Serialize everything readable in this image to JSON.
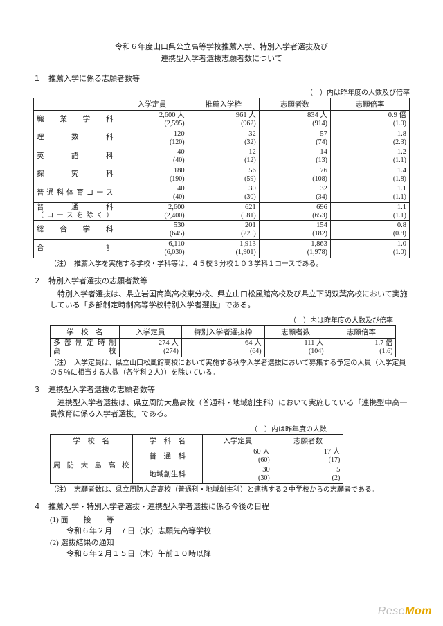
{
  "title_l1": "令和６年度山口県公立高等学校推薦入学、特別入学者選抜及び",
  "title_l2": "連携型入学者選抜志願者数について",
  "s1": {
    "heading": "１　推薦入学に係る志願者数等",
    "caption": "（　）内は昨年度の人数及び倍率",
    "headers": [
      "",
      "入学定員",
      "推薦入学枠",
      "志願者数",
      "志願倍率"
    ],
    "rows": [
      {
        "label": "職　業　学　科",
        "c1": "2,600 人",
        "c1s": "(2,595)",
        "c2": "961 人",
        "c2s": "(962)",
        "c3": "834 人",
        "c3s": "(914)",
        "c4": "0.9 倍",
        "c4s": "(1.0)"
      },
      {
        "label": "理　　数　　科",
        "c1": "120",
        "c1s": "(120)",
        "c2": "32",
        "c2s": "(32)",
        "c3": "57",
        "c3s": "(74)",
        "c4": "1.8",
        "c4s": "(2.3)"
      },
      {
        "label": "英　　語　　科",
        "c1": "40",
        "c1s": "(40)",
        "c2": "12",
        "c2s": "(12)",
        "c3": "14",
        "c3s": "(13)",
        "c4": "1.2",
        "c4s": "(1.1)"
      },
      {
        "label": "探　　究　　科",
        "c1": "180",
        "c1s": "(190)",
        "c2": "56",
        "c2s": "(59)",
        "c3": "76",
        "c3s": "(108)",
        "c4": "1.4",
        "c4s": "(1.8)"
      },
      {
        "label": "普通科体育コース",
        "c1": "40",
        "c1s": "(40)",
        "c2": "30",
        "c2s": "(30)",
        "c3": "32",
        "c3s": "(34)",
        "c4": "1.1",
        "c4s": "(1.1)"
      },
      {
        "label": "普　　通　　科",
        "label2": "（コースを除く）",
        "c1": "2,600",
        "c1s": "(2,400)",
        "c2": "621",
        "c2s": "(581)",
        "c3": "696",
        "c3s": "(653)",
        "c4": "1.1",
        "c4s": "(1.1)"
      },
      {
        "label": "総　合　学　科",
        "c1": "530",
        "c1s": "(645)",
        "c2": "201",
        "c2s": "(225)",
        "c3": "154",
        "c3s": "(182)",
        "c4": "0.8",
        "c4s": "(0.8)"
      },
      {
        "label": "合　　　　　計",
        "c1": "6,110",
        "c1s": "(6,030)",
        "c2": "1,913",
        "c2s": "(1,901)",
        "c3": "1,863",
        "c3s": "(1,978)",
        "c4": "1.0",
        "c4s": "(1.0)"
      }
    ],
    "note": "（注）　推薦入学を実施する学校・学科等は、４５校３分校１０３学科１コースである。"
  },
  "s2": {
    "heading": "２　特別入学者選抜の志願者数等",
    "para": "　特別入学者選抜は、県立岩国商業高校東分校、県立山口松風館高校及び県立下関双葉高校において実施している「多部制定時制高等学校特別入学者選抜」である。",
    "caption": "（　）内は昨年度の人数及び倍率",
    "headers": [
      "学　校　名",
      "入学定員",
      "特別入学者選抜枠",
      "志願者数",
      "志願倍率"
    ],
    "row": {
      "label": "多部制定時制",
      "label2": "高　　　　校",
      "c1": "274 人",
      "c1s": "(274)",
      "c2": "64 人",
      "c2s": "(64)",
      "c3": "111 人",
      "c3s": "(104)",
      "c4": "1.7 倍",
      "c4s": "(1.6)"
    },
    "note": "（注）　入学定員は、県立山口松風館高校において実施する秋季入学者選抜において募集する予定の人員（入学定員の５％に相当する人数（各学科２人））を除いている。"
  },
  "s3": {
    "heading": "３　連携型入学者選抜の志願者数等",
    "para": "　連携型入学者選抜は、県立周防大島高校（普通科・地域創生科）において実施している「連携型中高一貫教育に係る入学者選抜」である。",
    "caption": "（　）内は昨年度の人数",
    "headers": [
      "学　校　名",
      "学　科　名",
      "入学定員",
      "志願者数"
    ],
    "school": "周防大島高校",
    "rows": [
      {
        "dept": "普　通　科",
        "c1": "60 人",
        "c1s": "(60)",
        "c2": "17 人",
        "c2s": "(17)"
      },
      {
        "dept": "地域創生科",
        "c1": "30",
        "c1s": "(30)",
        "c2": "5",
        "c2s": "(2)"
      }
    ],
    "note": "（注）　志願者数は、県立周防大島高校（普通科・地域創生科）と連携する２中学校からの志願者である。"
  },
  "s4": {
    "heading": "４　推薦入学・特別入学者選抜・連携型入学者選抜に係る今後の日程",
    "i1": "(1) 面　　接　　等",
    "i1d": "令和６年２月　７日（水）志願先高等学校",
    "i2": "(2) 選抜結果の通知",
    "i2d": "令和６年２月１５日（木）午前１０時以降"
  },
  "watermark_a": "Rese",
  "watermark_b": "Mom"
}
